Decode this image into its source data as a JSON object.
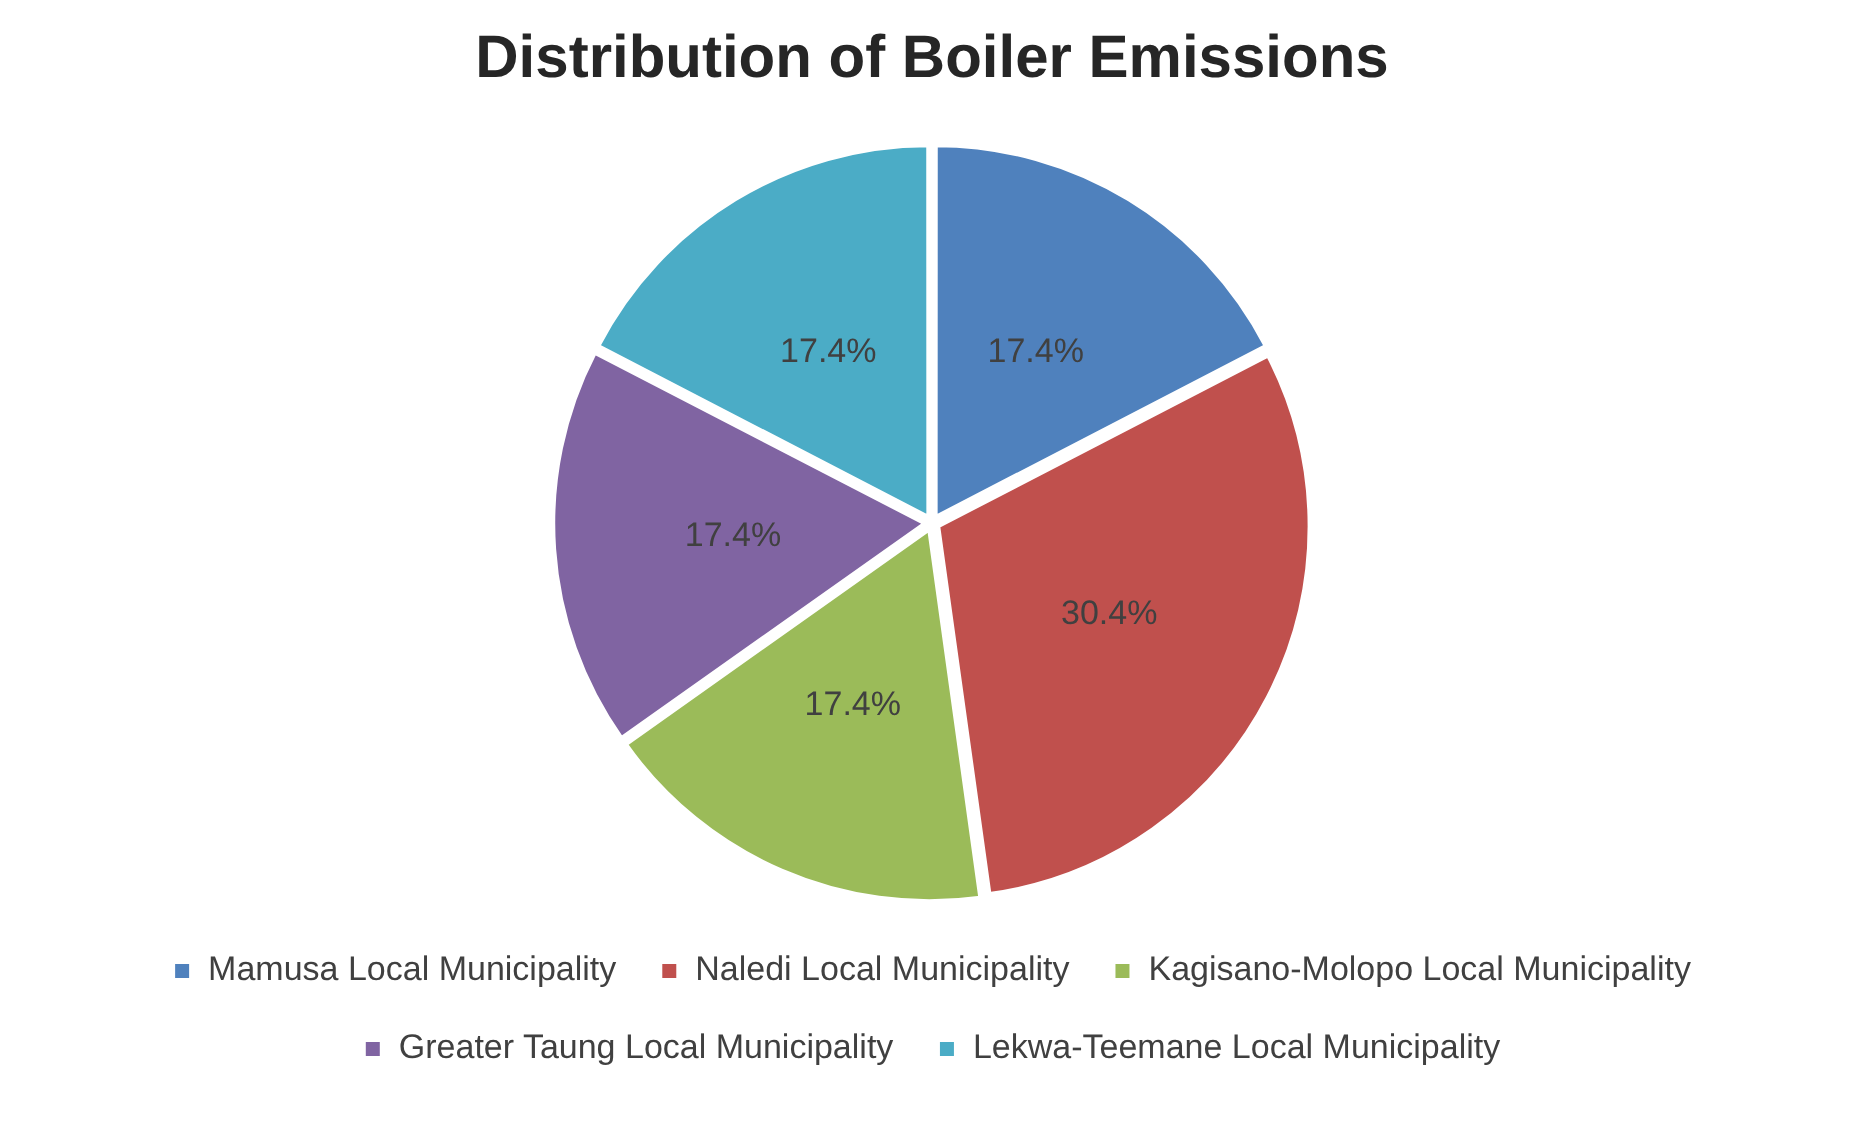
{
  "chart_data": {
    "type": "pie",
    "title": "Distribution of Boiler Emissions",
    "categories": [
      "Mamusa Local Municipality",
      "Naledi Local Municipality",
      "Kagisano-Molopo Local Municipality",
      "Greater Taung Local Municipality",
      "Lekwa-Teemane Local Municipality"
    ],
    "values": [
      17.4,
      30.4,
      17.4,
      17.4,
      17.4
    ],
    "value_labels": [
      "17.4%",
      "30.4%",
      "17.4%",
      "17.4%",
      "17.4%"
    ],
    "colors": [
      "#4f81bd",
      "#c0504d",
      "#9bbb59",
      "#8064a2",
      "#4bacc6"
    ],
    "legend": "bottom"
  }
}
